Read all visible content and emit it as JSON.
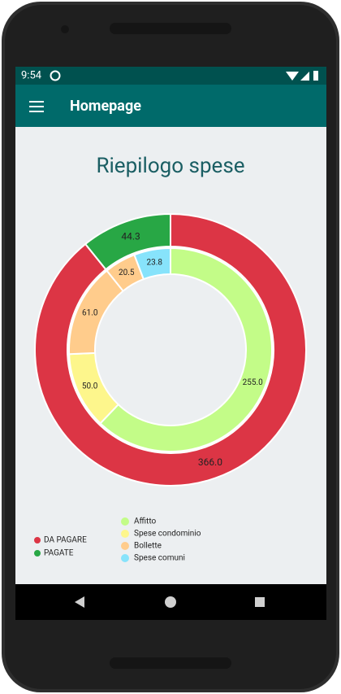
{
  "status": {
    "time": "9:54"
  },
  "appbar": {
    "title": "Homepage"
  },
  "chart_data": {
    "type": "donut",
    "title": "Riepilogo spese",
    "outer": {
      "categories": [
        "DA PAGARE",
        "PAGATE"
      ],
      "values": [
        366,
        44.3
      ],
      "value_labels": [
        "366.0",
        "44.3"
      ],
      "colors": [
        "#dc3545",
        "#28a745"
      ]
    },
    "inner": {
      "values": [
        255,
        50,
        61,
        20.5,
        23.8
      ],
      "value_labels": [
        "255.0",
        "50.0",
        "61.0",
        "20.5",
        "23.8"
      ],
      "colors": [
        "#c3fc88",
        "#fdf68c",
        "#ffcc8c",
        "#ffcc8c",
        "#87e3fb"
      ],
      "legend": {
        "names": [
          "Affitto",
          "Spese condominio",
          "Bollette",
          "Spese comuni"
        ],
        "colors": [
          "#c3fc88",
          "#fdf68c",
          "#ffcc8c",
          "#87e3fb"
        ]
      }
    }
  }
}
